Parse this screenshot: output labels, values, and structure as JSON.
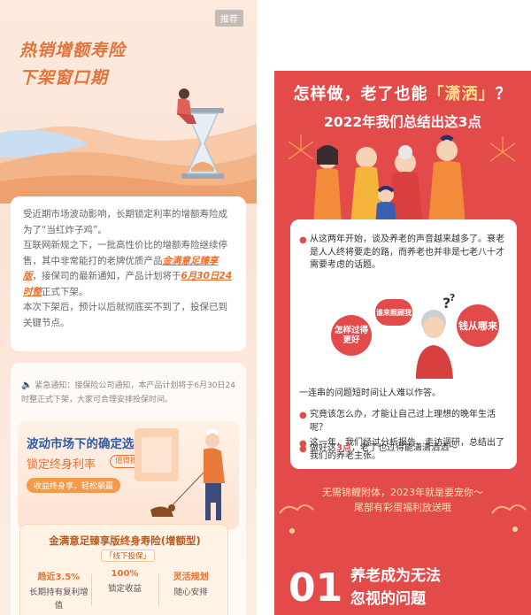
{
  "left_panel": {
    "ad_tag": "推荐",
    "hero_title_line1": "热销增额寿险",
    "hero_title_line2": "下架窗口期",
    "card": {
      "p1": "受近期市场波动影响，长期锁定利率的增额寿险成为了“当红炸子鸡”。",
      "p2_pre": "互联网新规之下，一批高性价比的增额寿险继续停售，其中非常能打的老牌优质产品",
      "p2_product": "金满意足臻享版",
      "p2_mid": "，接保司的最新通知，产品计划将于",
      "p2_date": "6月30日24时整",
      "p2_post": "正式下架。",
      "p3": "本次下架后，预计以后就彻底买不到了，投保已到关键节点。"
    },
    "notice": {
      "label": "紧急通知：",
      "text": "接保险公司通知，本产品计划将于6月30日24时整正式下架，大家可合理安排投保时间。"
    },
    "promo": {
      "title": "波动市场下的确定选择：",
      "subtitle": "锁定终身利率",
      "badge": "值得推荐",
      "bar": "收益终身享，轻松躺赢"
    },
    "product": {
      "title": "金满意足臻享版终身寿险(增额型)",
      "channel": "「线下投保」",
      "cols": [
        {
          "key": "趋近3.5%",
          "value": "长期持有复利增值"
        },
        {
          "key": "100%",
          "value": "锁定收益"
        },
        {
          "key": "灵活规划",
          "value": "随心安排"
        }
      ]
    }
  },
  "right_panel": {
    "head1_pre": "怎样做，老了也能",
    "head1_acc": "「潇洒」",
    "head1_post": "？",
    "head2": "2022年我们总结出这3点",
    "bullets": {
      "b1": "从这两年开始，谈及养老的声音越来越多了。衰老是人人终将要走的路，而养老也并非是七老八十才需要考虑的话题。",
      "b2": "一连串的问题短时间让人难以作答。",
      "b3": "究竟该怎么办，才能让自己过上理想的晚年生活呢？",
      "b4": "这一年，我们经过分析报告、走访调研，总结出了我们的养老主张。",
      "b5_pre": "做好这",
      "b5_acc": "3点",
      "b5_post": "，老了也过得能潇潇洒洒～"
    },
    "bubbles": {
      "q1": "怎样过得更好",
      "q2": "谁来照顾我",
      "q3": "钱从哪来"
    },
    "footer1": "无需锦鲤附体，2023年就是要宠你～",
    "footer2": "尾部有彩蛋福利放送哦",
    "section": {
      "number": "01",
      "title1": "养老成为无法",
      "title2": "忽视的问题"
    }
  }
}
